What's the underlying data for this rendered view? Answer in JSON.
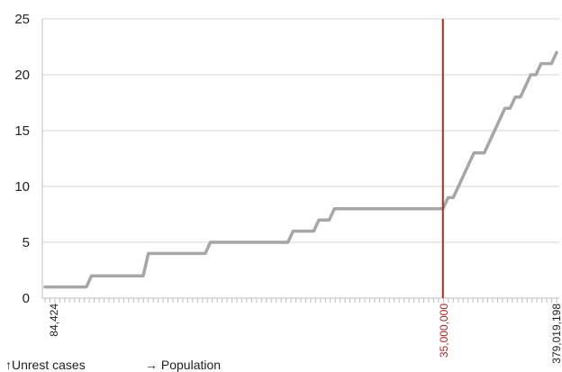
{
  "chart_data": {
    "type": "line",
    "x_axis": {
      "tick_labels": [
        "84,424",
        "35,000,000",
        "379,019,198"
      ],
      "tick_count": 105
    },
    "y_axis": {
      "ylim": [
        0,
        25
      ],
      "ticks": [
        0,
        5,
        10,
        15,
        20,
        25
      ],
      "grid": true
    },
    "series": [
      {
        "color": "#a6a6a6",
        "values": [
          1,
          1,
          1,
          1,
          1,
          1,
          1,
          1,
          1,
          2,
          2,
          2,
          2,
          2,
          2,
          2,
          2,
          2,
          2,
          2,
          4,
          4,
          4,
          4,
          4,
          4,
          4,
          4,
          4,
          4,
          4,
          4,
          5,
          5,
          5,
          5,
          5,
          5,
          5,
          5,
          5,
          5,
          5,
          5,
          5,
          5,
          5,
          5,
          6,
          6,
          6,
          6,
          6,
          7,
          7,
          7,
          8,
          8,
          8,
          8,
          8,
          8,
          8,
          8,
          8,
          8,
          8,
          8,
          8,
          8,
          8,
          8,
          8,
          8,
          8,
          8,
          8,
          8,
          9,
          9,
          10,
          11,
          12,
          13,
          13,
          13,
          14,
          15,
          16,
          17,
          17,
          18,
          18,
          19,
          20,
          20,
          21,
          21,
          21,
          22
        ]
      }
    ],
    "reference_line": {
      "label": "35,000,000",
      "index": 77,
      "color": "#a52a2a"
    },
    "captions": {
      "y": "↑Unrest cases",
      "x": "→ Population"
    }
  }
}
